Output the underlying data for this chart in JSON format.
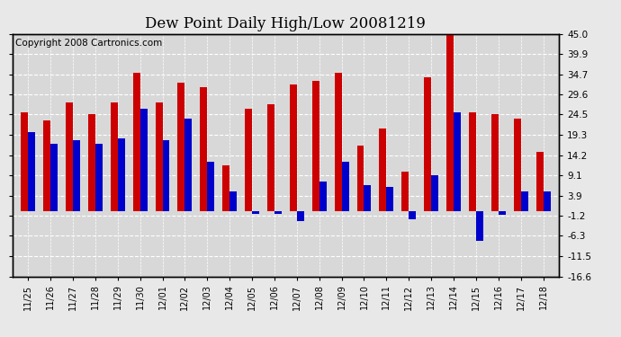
{
  "title": "Dew Point Daily High/Low 20081219",
  "copyright": "Copyright 2008 Cartronics.com",
  "dates": [
    "11/25",
    "11/26",
    "11/27",
    "11/28",
    "11/29",
    "11/30",
    "12/01",
    "12/02",
    "12/03",
    "12/04",
    "12/05",
    "12/06",
    "12/07",
    "12/08",
    "12/09",
    "12/10",
    "12/11",
    "12/12",
    "12/13",
    "12/14",
    "12/15",
    "12/16",
    "12/17",
    "12/18"
  ],
  "highs": [
    25.0,
    23.0,
    27.5,
    24.5,
    27.5,
    35.0,
    27.5,
    32.5,
    31.5,
    11.5,
    26.0,
    27.0,
    32.0,
    33.0,
    35.0,
    16.5,
    21.0,
    10.0,
    34.0,
    45.0,
    25.0,
    24.5,
    23.5,
    15.0
  ],
  "lows": [
    20.0,
    17.0,
    18.0,
    17.0,
    18.5,
    26.0,
    18.0,
    23.5,
    12.5,
    5.0,
    -0.8,
    -0.8,
    -2.5,
    7.5,
    12.5,
    6.5,
    6.0,
    -2.0,
    9.0,
    25.0,
    -7.5,
    -1.0,
    5.0,
    5.0
  ],
  "ylim": [
    -16.6,
    45.0
  ],
  "yticks": [
    45.0,
    39.9,
    34.7,
    29.6,
    24.5,
    19.3,
    14.2,
    9.1,
    3.9,
    -1.2,
    -6.3,
    -11.5,
    -16.6
  ],
  "ytick_labels": [
    "45.0",
    "39.9",
    "34.7",
    "29.6",
    "24.5",
    "19.3",
    "14.2",
    "9.1",
    "3.9",
    "-1.2",
    "-6.3",
    "-11.5",
    "-16.6"
  ],
  "high_color": "#cc0000",
  "low_color": "#0000cc",
  "bg_color": "#e8e8e8",
  "plot_bg_color": "#d8d8d8",
  "grid_color": "#ffffff",
  "title_fontsize": 12,
  "copyright_fontsize": 7.5,
  "bar_width": 0.32
}
